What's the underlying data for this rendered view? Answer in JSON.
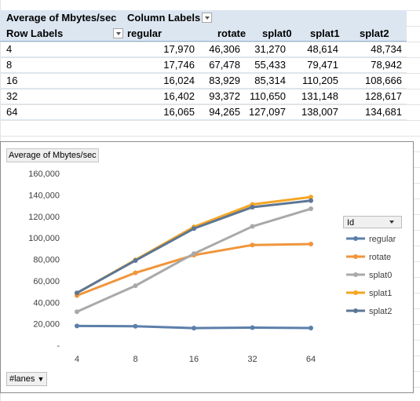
{
  "pivot": {
    "value_field": "Average of Mbytes/sec",
    "column_labels": "Column Labels",
    "row_labels": "Row Labels",
    "columns": [
      "regular",
      "rotate",
      "splat0",
      "splat1",
      "splat2"
    ],
    "rows": [
      {
        "label": "4",
        "values": [
          "17,970",
          "46,306",
          "31,270",
          "48,614",
          "48,734"
        ]
      },
      {
        "label": "8",
        "values": [
          "17,746",
          "67,478",
          "55,433",
          "79,471",
          "78,942"
        ]
      },
      {
        "label": "16",
        "values": [
          "16,024",
          "83,929",
          "85,314",
          "110,205",
          "108,666"
        ]
      },
      {
        "label": "32",
        "values": [
          "16,402",
          "93,372",
          "110,650",
          "131,148",
          "128,617"
        ]
      },
      {
        "label": "64",
        "values": [
          "16,065",
          "94,265",
          "127,097",
          "138,007",
          "134,681"
        ]
      }
    ]
  },
  "chart_data": {
    "type": "line",
    "title": "Average of Mbytes/sec",
    "categories": [
      "4",
      "8",
      "16",
      "32",
      "64"
    ],
    "ylim": [
      0,
      160000
    ],
    "yticks": [
      "-",
      "20,000",
      "40,000",
      "60,000",
      "80,000",
      "100,000",
      "120,000",
      "140,000",
      "160,000"
    ],
    "grid": false,
    "legend_title": "Id",
    "legend_position": "right",
    "axis_field_button": "#lanes",
    "series": [
      {
        "name": "regular",
        "color": "#5b7faa",
        "values": [
          17970,
          17746,
          16024,
          16402,
          16065
        ]
      },
      {
        "name": "rotate",
        "color": "#f0953b",
        "values": [
          46306,
          67478,
          83929,
          93372,
          94265
        ]
      },
      {
        "name": "splat0",
        "color": "#a9a9a9",
        "values": [
          31270,
          55433,
          85314,
          110650,
          127097
        ]
      },
      {
        "name": "splat1",
        "color": "#f5a623",
        "values": [
          48614,
          79471,
          110205,
          131148,
          138007
        ]
      },
      {
        "name": "splat2",
        "color": "#5d7694",
        "values": [
          48734,
          78942,
          108666,
          128617,
          134681
        ]
      }
    ]
  }
}
